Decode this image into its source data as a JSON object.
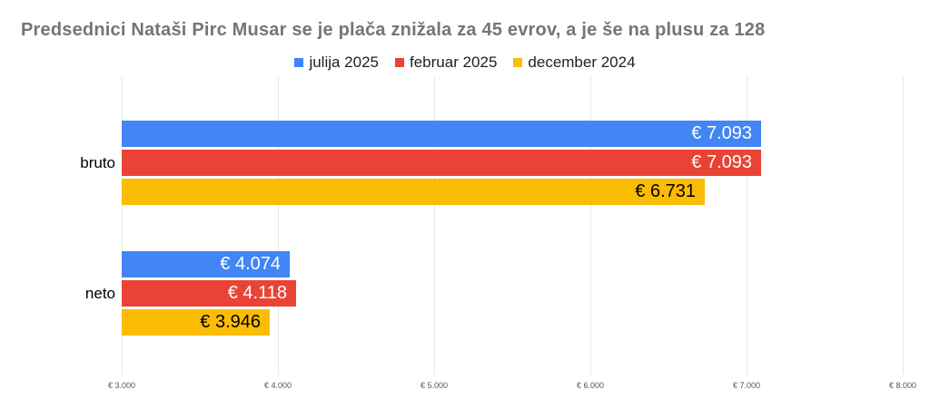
{
  "title": "Predsednici Nataši Pirc Musar se je plača znižala za 45 evrov, a je še na plusu za 128",
  "colors": {
    "series_blue": "#4285F4",
    "series_red": "#EA4335",
    "series_yellow": "#FBBC04",
    "title_text": "#757575",
    "gridline": "#e6e6e6"
  },
  "chart_data": {
    "type": "bar",
    "orientation": "horizontal",
    "title": "Predsednici Nataši Pirc Musar se je plača znižala za 45 evrov, a je še na plusu za 128",
    "categories": [
      "bruto",
      "neto"
    ],
    "series": [
      {
        "name": "julija 2025",
        "color": "#4285F4",
        "label_color": "#ffffff",
        "values": [
          7093,
          4074
        ],
        "labels": [
          "€ 7.093",
          "€ 4.074"
        ]
      },
      {
        "name": "februar 2025",
        "color": "#EA4335",
        "label_color": "#ffffff",
        "values": [
          7093,
          4118
        ],
        "labels": [
          "€ 7.093",
          "€ 4.118"
        ]
      },
      {
        "name": "december 2024",
        "color": "#FBBC04",
        "label_color": "#000000",
        "values": [
          6731,
          3946
        ],
        "labels": [
          "€ 6.731",
          "€ 3.946"
        ]
      }
    ],
    "xlim": [
      3000,
      8000
    ],
    "x_ticks": [
      {
        "value": 3000,
        "label": "€ 3.000"
      },
      {
        "value": 4000,
        "label": "€ 4.000"
      },
      {
        "value": 5000,
        "label": "€ 5.000"
      },
      {
        "value": 6000,
        "label": "€ 6.000"
      },
      {
        "value": 7000,
        "label": "€ 7.000"
      },
      {
        "value": 8000,
        "label": "€ 8.000"
      }
    ],
    "grid": true,
    "legend_position": "top"
  }
}
